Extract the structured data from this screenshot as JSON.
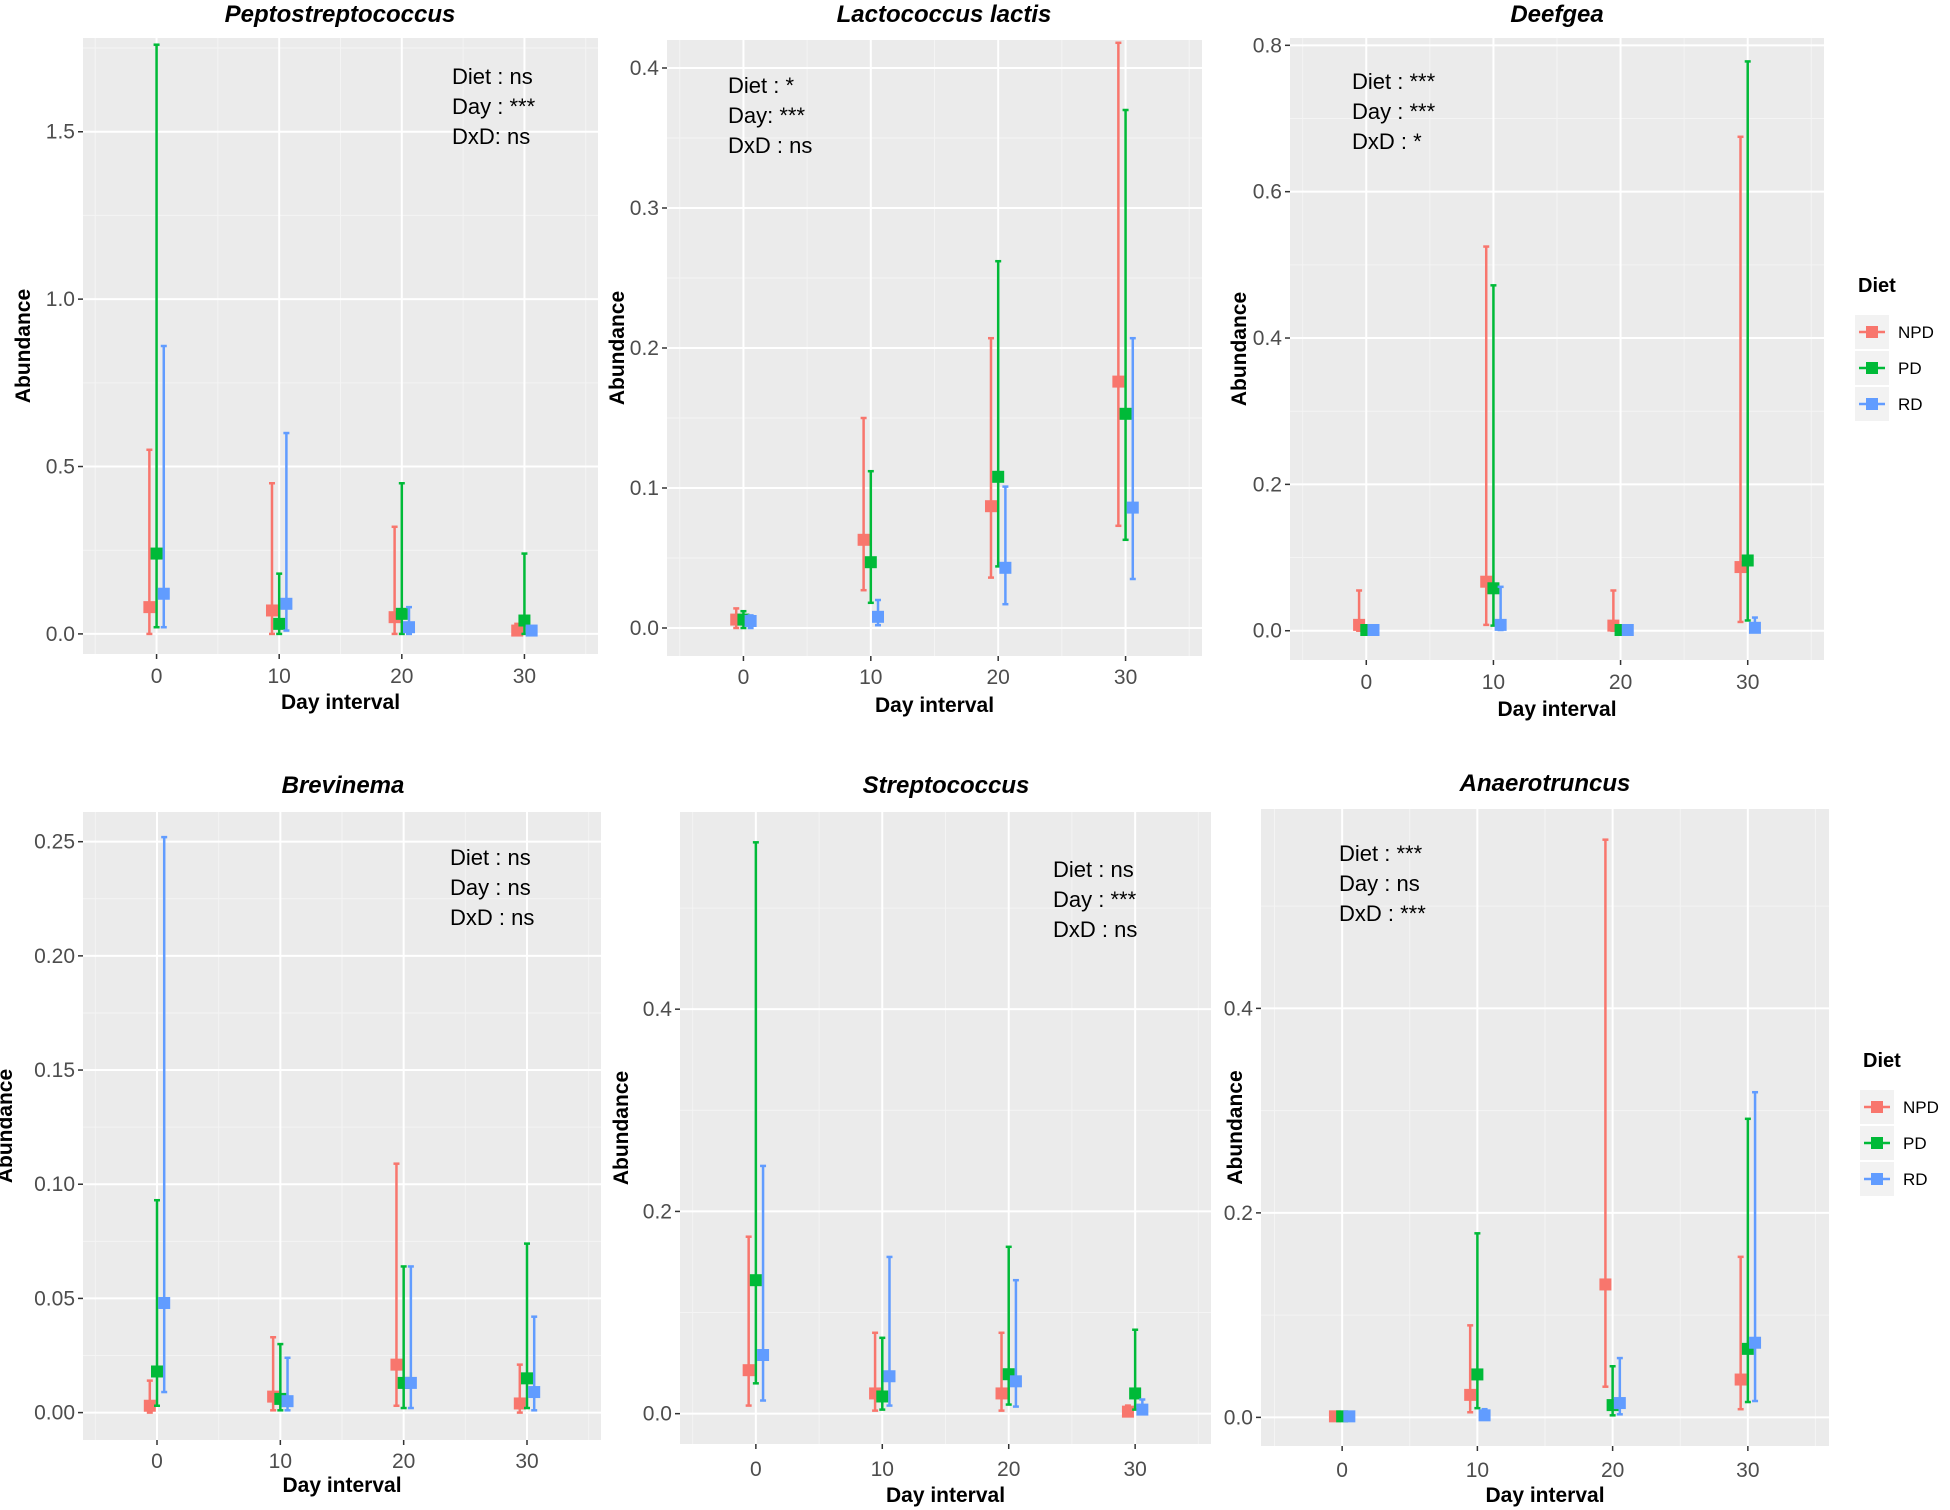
{
  "colors": {
    "NPD": "#F8766D",
    "PD": "#00BA38",
    "RD": "#619CFF"
  },
  "legend": {
    "title": "Diet",
    "entries": [
      "NPD",
      "PD",
      "RD"
    ]
  },
  "chart_data": [
    {
      "type": "scatter",
      "title": "Peptostreptococcus",
      "xlabel": "Day interval",
      "ylabel": "Abundance",
      "x": [
        0,
        10,
        20,
        30
      ],
      "xticks": [
        "0",
        "10",
        "20",
        "30"
      ],
      "yticks": [
        0.0,
        0.5,
        1.0,
        1.5
      ],
      "ytick_labels": [
        "0.0",
        "0.5",
        "1.0",
        "1.5"
      ],
      "ylim": [
        -0.06,
        1.78
      ],
      "annotations": [
        "Diet : ns",
        "Day :   ***",
        "DxD: ns"
      ],
      "series": [
        {
          "name": "NPD",
          "mean": [
            0.08,
            0.07,
            0.05,
            0.01
          ],
          "low": [
            0.0,
            0.0,
            0.0,
            0.0
          ],
          "high": [
            0.55,
            0.45,
            0.32,
            0.03
          ]
        },
        {
          "name": "PD",
          "mean": [
            0.24,
            0.03,
            0.06,
            0.04
          ],
          "low": [
            0.02,
            0.0,
            0.0,
            0.0
          ],
          "high": [
            1.76,
            0.18,
            0.45,
            0.24
          ]
        },
        {
          "name": "RD",
          "mean": [
            0.12,
            0.09,
            0.02,
            0.01
          ],
          "low": [
            0.02,
            0.01,
            0.0,
            0.0
          ],
          "high": [
            0.86,
            0.6,
            0.08,
            0.02
          ]
        }
      ]
    },
    {
      "type": "scatter",
      "title": "Lactococcus lactis",
      "xlabel": "Day interval",
      "ylabel": "Abundance",
      "x": [
        0,
        10,
        20,
        30
      ],
      "xticks": [
        "0",
        "10",
        "20",
        "30"
      ],
      "yticks": [
        0.0,
        0.1,
        0.2,
        0.3,
        0.4
      ],
      "ytick_labels": [
        "0.0",
        "0.1",
        "0.2",
        "0.3",
        "0.4"
      ],
      "ylim": [
        -0.02,
        0.42
      ],
      "annotations": [
        "Diet : *",
        "Day: ***",
        "DxD : ns"
      ],
      "series": [
        {
          "name": "NPD",
          "mean": [
            0.006,
            0.063,
            0.087,
            0.176
          ],
          "low": [
            0.0,
            0.027,
            0.036,
            0.073
          ],
          "high": [
            0.014,
            0.15,
            0.207,
            0.418
          ]
        },
        {
          "name": "PD",
          "mean": [
            0.006,
            0.047,
            0.108,
            0.153
          ],
          "low": [
            0.0,
            0.018,
            0.044,
            0.063
          ],
          "high": [
            0.012,
            0.112,
            0.262,
            0.37
          ]
        },
        {
          "name": "RD",
          "mean": [
            0.005,
            0.008,
            0.043,
            0.086
          ],
          "low": [
            0.0,
            0.002,
            0.017,
            0.035
          ],
          "high": [
            0.009,
            0.02,
            0.101,
            0.207
          ]
        }
      ]
    },
    {
      "type": "scatter",
      "title": "Deefgea",
      "xlabel": "Day interval",
      "ylabel": "Abundance",
      "x": [
        0,
        10,
        20,
        30
      ],
      "xticks": [
        "0",
        "10",
        "20",
        "30"
      ],
      "yticks": [
        0.0,
        0.2,
        0.4,
        0.6,
        0.8
      ],
      "ytick_labels": [
        "0.0",
        "0.2",
        "0.4",
        "0.6",
        "0.8"
      ],
      "ylim": [
        -0.04,
        0.81
      ],
      "annotations": [
        "Diet : ***",
        "Day : ***",
        "DxD : *"
      ],
      "series": [
        {
          "name": "NPD",
          "mean": [
            0.008,
            0.067,
            0.007,
            0.087
          ],
          "low": [
            0.0,
            0.008,
            0.0,
            0.012
          ],
          "high": [
            0.055,
            0.525,
            0.055,
            0.675
          ]
        },
        {
          "name": "PD",
          "mean": [
            0.001,
            0.058,
            0.001,
            0.096
          ],
          "low": [
            0.0,
            0.007,
            0.0,
            0.014
          ],
          "high": [
            0.005,
            0.472,
            0.005,
            0.778
          ]
        },
        {
          "name": "RD",
          "mean": [
            0.001,
            0.008,
            0.001,
            0.004
          ],
          "low": [
            0.0,
            0.001,
            0.0,
            0.0
          ],
          "high": [
            0.005,
            0.06,
            0.005,
            0.018
          ]
        }
      ]
    },
    {
      "type": "scatter",
      "title": "Brevinema",
      "xlabel": "Day interval",
      "ylabel": "Abundance",
      "x": [
        0,
        10,
        20,
        30
      ],
      "xticks": [
        "0",
        "10",
        "20",
        "30"
      ],
      "yticks": [
        0.0,
        0.05,
        0.1,
        0.15,
        0.2,
        0.25
      ],
      "ytick_labels": [
        "0.00",
        "0.05",
        "0.10",
        "0.15",
        "0.20",
        "0.25"
      ],
      "ylim": [
        -0.012,
        0.263
      ],
      "annotations": [
        "Diet : ns",
        "Day : ns",
        "DxD : ns"
      ],
      "series": [
        {
          "name": "NPD",
          "mean": [
            0.003,
            0.007,
            0.021,
            0.004
          ],
          "low": [
            0.0,
            0.001,
            0.003,
            0.0
          ],
          "high": [
            0.014,
            0.033,
            0.109,
            0.021
          ]
        },
        {
          "name": "PD",
          "mean": [
            0.018,
            0.006,
            0.013,
            0.015
          ],
          "low": [
            0.003,
            0.001,
            0.002,
            0.002
          ],
          "high": [
            0.093,
            0.03,
            0.064,
            0.074
          ]
        },
        {
          "name": "RD",
          "mean": [
            0.048,
            0.005,
            0.013,
            0.009
          ],
          "low": [
            0.009,
            0.001,
            0.002,
            0.001
          ],
          "high": [
            0.252,
            0.024,
            0.064,
            0.042
          ]
        }
      ]
    },
    {
      "type": "scatter",
      "title": "Streptococcus",
      "xlabel": "Day interval",
      "ylabel": "Abundance",
      "x": [
        0,
        10,
        20,
        30
      ],
      "xticks": [
        "0",
        "10",
        "20",
        "30"
      ],
      "yticks": [
        0.0,
        0.2,
        0.4
      ],
      "ytick_labels": [
        "0.0",
        "0.2",
        "0.4"
      ],
      "ylim": [
        -0.03,
        0.595
      ],
      "annotations": [
        "Diet : ns",
        "Day : ***",
        "DxD : ns"
      ],
      "series": [
        {
          "name": "NPD",
          "mean": [
            0.043,
            0.02,
            0.02,
            0.002
          ],
          "low": [
            0.008,
            0.003,
            0.003,
            0.0
          ],
          "high": [
            0.175,
            0.08,
            0.08,
            0.008
          ]
        },
        {
          "name": "PD",
          "mean": [
            0.132,
            0.017,
            0.039,
            0.02
          ],
          "low": [
            0.03,
            0.004,
            0.009,
            0.004
          ],
          "high": [
            0.565,
            0.075,
            0.165,
            0.083
          ]
        },
        {
          "name": "RD",
          "mean": [
            0.058,
            0.037,
            0.032,
            0.004
          ],
          "low": [
            0.013,
            0.008,
            0.007,
            0.0
          ],
          "high": [
            0.245,
            0.155,
            0.132,
            0.014
          ]
        }
      ]
    },
    {
      "type": "scatter",
      "title": "Anaerotruncus",
      "xlabel": "Day interval",
      "ylabel": "Abundance",
      "x": [
        0,
        10,
        20,
        30
      ],
      "xticks": [
        "0",
        "10",
        "20",
        "30"
      ],
      "yticks": [
        0.0,
        0.2,
        0.4
      ],
      "ytick_labels": [
        "0.0",
        "0.2",
        "0.4"
      ],
      "ylim": [
        -0.028,
        0.595
      ],
      "annotations": [
        "Diet : ***",
        "Day : ns",
        "DxD : ***"
      ],
      "series": [
        {
          "name": "NPD",
          "mean": [
            0.001,
            0.022,
            0.13,
            0.037
          ],
          "low": [
            0.0,
            0.005,
            0.03,
            0.008
          ],
          "high": [
            0.004,
            0.09,
            0.565,
            0.157
          ]
        },
        {
          "name": "PD",
          "mean": [
            0.001,
            0.042,
            0.012,
            0.067
          ],
          "low": [
            0.0,
            0.009,
            0.002,
            0.015
          ],
          "high": [
            0.004,
            0.18,
            0.05,
            0.292
          ]
        },
        {
          "name": "RD",
          "mean": [
            0.001,
            0.002,
            0.014,
            0.073
          ],
          "low": [
            0.0,
            0.0,
            0.003,
            0.016
          ],
          "high": [
            0.004,
            0.008,
            0.058,
            0.318
          ]
        }
      ]
    }
  ]
}
